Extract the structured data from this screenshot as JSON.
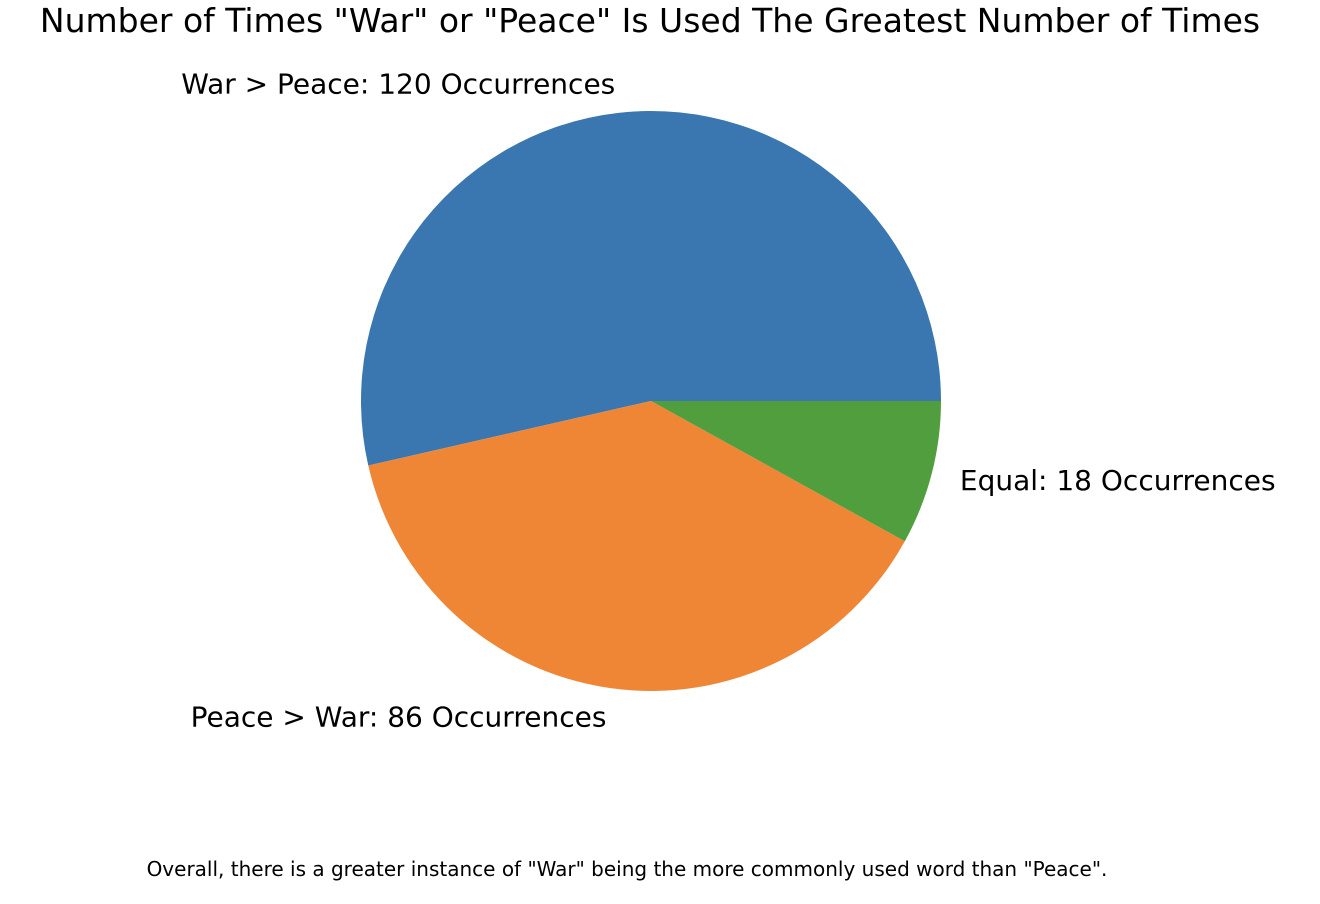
{
  "chart_data": {
    "type": "pie",
    "title": "Number of Times \"War\" or \"Peace\" Is Used The Greatest Number of Times",
    "start_angle_deg": 0,
    "direction": "counterclockwise",
    "slices": [
      {
        "key": "war",
        "label": "War > Peace: 120 Occurrences",
        "value": 120,
        "color": "#3a76af"
      },
      {
        "key": "peace",
        "label": "Peace > War: 86 Occurrences",
        "value": 86,
        "color": "#ef8636"
      },
      {
        "key": "equal",
        "label": "Equal: 18 Occurrences",
        "value": 18,
        "color": "#519e3e"
      }
    ],
    "caption": "Overall, there is a greater instance of \"War\" being the more commonly used word than \"Peace\"."
  }
}
